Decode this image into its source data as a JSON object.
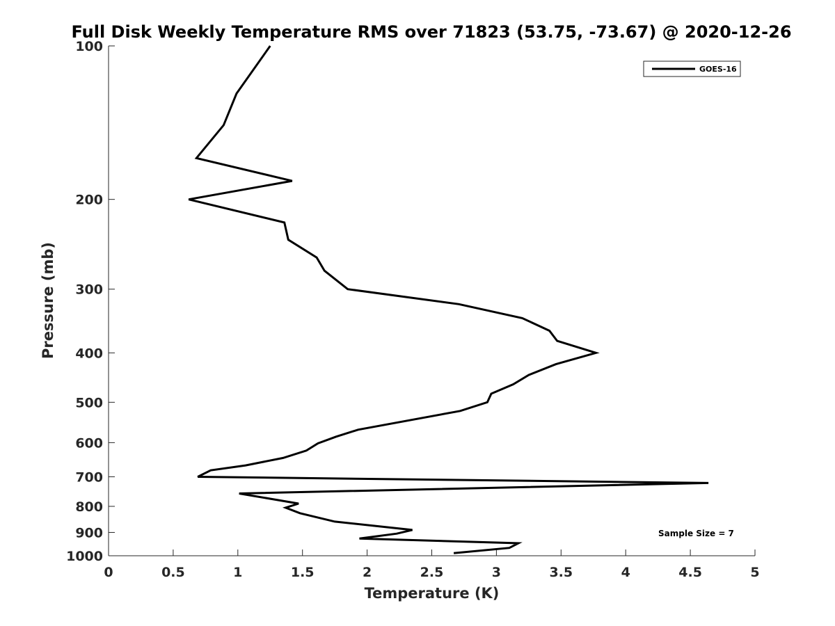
{
  "chart_data": {
    "type": "line",
    "title": "Full Disk Weekly Temperature RMS over 71823 (53.75, -73.67) @ 2020-12-26",
    "xlabel": "Temperature (K)",
    "ylabel": "Pressure (mb)",
    "xlim": [
      0,
      5
    ],
    "ylim": [
      100,
      1000
    ],
    "y_scale": "log",
    "y_reversed": true,
    "grid": false,
    "legend_position": "top-right",
    "x_ticks": [
      "0",
      "0.5",
      "1",
      "1.5",
      "2",
      "2.5",
      "3",
      "3.5",
      "4",
      "4.5",
      "5"
    ],
    "y_ticks": [
      "100",
      "200",
      "300",
      "400",
      "500",
      "600",
      "700",
      "800",
      "900",
      "1000"
    ],
    "annotation": "Sample Size = 7",
    "series": [
      {
        "name": "GOES-16",
        "color": "#000000",
        "points": [
          [
            1.25,
            100
          ],
          [
            0.99,
            124
          ],
          [
            0.89,
            143
          ],
          [
            0.68,
            166
          ],
          [
            1.42,
            184
          ],
          [
            0.62,
            200
          ],
          [
            1.36,
            222
          ],
          [
            1.39,
            240
          ],
          [
            1.61,
            260
          ],
          [
            1.67,
            276
          ],
          [
            1.85,
            300
          ],
          [
            2.71,
            321
          ],
          [
            3.2,
            342
          ],
          [
            3.41,
            362
          ],
          [
            3.47,
            379
          ],
          [
            3.77,
            400
          ],
          [
            3.46,
            421
          ],
          [
            3.25,
            442
          ],
          [
            3.13,
            461
          ],
          [
            2.96,
            481
          ],
          [
            2.93,
            500
          ],
          [
            2.72,
            520
          ],
          [
            1.93,
            566
          ],
          [
            1.76,
            584
          ],
          [
            1.62,
            602
          ],
          [
            1.53,
            622
          ],
          [
            1.35,
            643
          ],
          [
            1.06,
            665
          ],
          [
            0.79,
            680
          ],
          [
            0.69,
            700
          ],
          [
            4.64,
            720
          ],
          [
            1.01,
            755
          ],
          [
            1.47,
            790
          ],
          [
            1.37,
            805
          ],
          [
            1.48,
            825
          ],
          [
            1.75,
            857
          ],
          [
            2.35,
            890
          ],
          [
            2.23,
            905
          ],
          [
            1.94,
            925
          ],
          [
            3.17,
            945
          ],
          [
            3.1,
            965
          ],
          [
            2.67,
            988
          ]
        ]
      }
    ]
  }
}
